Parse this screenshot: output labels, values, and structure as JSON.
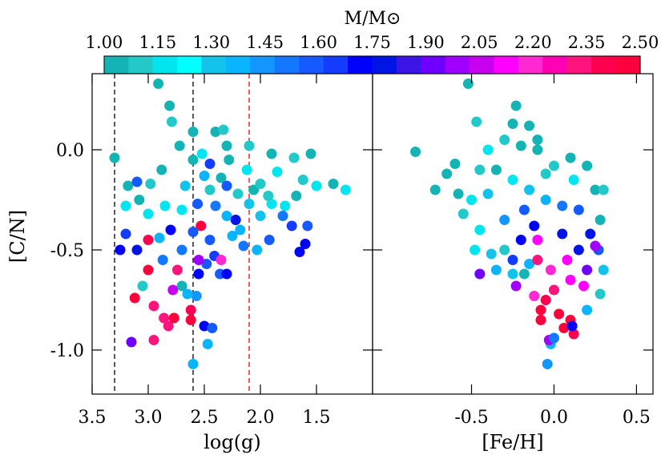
{
  "colorbar": {
    "title": "M/M⊙",
    "tick_labels": [
      "1.00",
      "1.15",
      "1.30",
      "1.45",
      "1.60",
      "1.75",
      "1.90",
      "2.05",
      "2.20",
      "2.35",
      "2.50"
    ],
    "range": [
      1.0,
      2.5
    ],
    "segment_colors": [
      "#14b4b4",
      "#23c8c8",
      "#00e6f0",
      "#00ffff",
      "#14c3eb",
      "#0ab4ff",
      "#1496ff",
      "#1478ff",
      "#145aff",
      "#143cff",
      "#0000ff",
      "#0014e6",
      "#3c14e6",
      "#6e00ff",
      "#a000ff",
      "#c800f0",
      "#ff00ff",
      "#ff28d2",
      "#ff00b4",
      "#ff147d",
      "#ff0050",
      "#ff003c"
    ]
  },
  "chart_data": [
    {
      "type": "scatter",
      "panel": "left",
      "xlabel": "log(g)",
      "ylabel": "[C/N]",
      "xlim": [
        3.5,
        1.0
      ],
      "ylim": [
        -1.22,
        0.38
      ],
      "x_ticks": [
        3.5,
        3.0,
        2.5,
        2.0,
        1.5
      ],
      "x_tick_labels": [
        "3.5",
        "3.0",
        "2.5",
        "2.0",
        "1.5"
      ],
      "y_ticks": [
        0.0,
        -0.5,
        -1.0
      ],
      "y_tick_labels": [
        "0.0",
        "-0.5",
        "-1.0"
      ],
      "vlines": [
        {
          "x": 3.3,
          "color": "#000000",
          "style": "dashed"
        },
        {
          "x": 2.6,
          "color": "#000000",
          "style": "dashed"
        },
        {
          "x": 2.1,
          "color": "#ff0000",
          "style": "dashed"
        }
      ],
      "points": [
        [
          2.91,
          0.33,
          1.0
        ],
        [
          3.3,
          -0.04,
          1.0
        ],
        [
          2.81,
          0.22,
          1.0
        ],
        [
          2.79,
          0.14,
          1.1
        ],
        [
          2.6,
          0.09,
          1.0
        ],
        [
          2.4,
          0.09,
          1.05
        ],
        [
          2.33,
          0.1,
          1.1
        ],
        [
          2.1,
          0.02,
          1.1
        ],
        [
          1.9,
          -0.02,
          1.05
        ],
        [
          1.7,
          -0.04,
          1.08
        ],
        [
          1.55,
          -0.02,
          1.02
        ],
        [
          1.85,
          -0.11,
          1.15
        ],
        [
          1.62,
          -0.15,
          1.1
        ],
        [
          1.5,
          -0.18,
          1.15
        ],
        [
          1.35,
          -0.17,
          1.0
        ],
        [
          1.24,
          -0.2,
          1.15
        ],
        [
          1.68,
          -0.23,
          1.0
        ],
        [
          1.78,
          -0.28,
          1.15
        ],
        [
          1.9,
          -0.27,
          1.2
        ],
        [
          2.0,
          -0.33,
          1.3
        ],
        [
          1.8,
          -0.33,
          1.5
        ],
        [
          1.72,
          -0.38,
          1.65
        ],
        [
          1.58,
          -0.38,
          1.6
        ],
        [
          1.6,
          -0.47,
          1.7
        ],
        [
          1.65,
          -0.51,
          1.7
        ],
        [
          1.92,
          -0.45,
          1.6
        ],
        [
          2.03,
          -0.5,
          1.4
        ],
        [
          2.18,
          -0.4,
          1.35
        ],
        [
          2.25,
          -0.43,
          1.35
        ],
        [
          2.15,
          -0.48,
          1.5
        ],
        [
          2.41,
          -0.53,
          1.65
        ],
        [
          2.48,
          -0.57,
          1.6
        ],
        [
          2.55,
          -0.62,
          1.7
        ],
        [
          2.57,
          -0.73,
          1.45
        ],
        [
          2.36,
          -0.62,
          1.55
        ],
        [
          2.3,
          -0.62,
          1.7
        ],
        [
          2.53,
          -0.38,
          2.45
        ],
        [
          2.65,
          -0.72,
          1.4
        ],
        [
          2.7,
          -0.68,
          1.0
        ],
        [
          3.0,
          -0.6,
          2.45
        ],
        [
          3.05,
          -0.68,
          1.1
        ],
        [
          3.12,
          -0.74,
          2.5
        ],
        [
          2.95,
          -0.78,
          2.3
        ],
        [
          2.86,
          -0.84,
          2.3
        ],
        [
          2.82,
          -0.88,
          2.35
        ],
        [
          2.77,
          -0.84,
          2.5
        ],
        [
          2.62,
          -0.8,
          2.4
        ],
        [
          2.62,
          -0.85,
          2.45
        ],
        [
          2.95,
          -0.95,
          2.3
        ],
        [
          3.15,
          -0.96,
          1.95
        ],
        [
          2.5,
          -0.88,
          1.7
        ],
        [
          2.47,
          -0.97,
          1.35
        ],
        [
          2.6,
          -1.07,
          1.4
        ],
        [
          2.43,
          -0.89,
          1.6
        ],
        [
          3.25,
          -0.5,
          1.7
        ],
        [
          3.2,
          -0.42,
          1.65
        ],
        [
          3.2,
          -0.28,
          1.15
        ],
        [
          3.18,
          -0.18,
          1.0
        ],
        [
          3.1,
          -0.16,
          1.6
        ],
        [
          3.0,
          -0.32,
          1.2
        ],
        [
          2.85,
          -0.28,
          1.2
        ],
        [
          2.9,
          -0.44,
          1.4
        ],
        [
          2.87,
          -0.55,
          1.5
        ],
        [
          2.7,
          -0.5,
          1.5
        ],
        [
          2.7,
          -0.3,
          1.2
        ],
        [
          2.67,
          -0.18,
          1.3
        ],
        [
          2.56,
          -0.27,
          1.55
        ],
        [
          2.5,
          -0.13,
          1.35
        ],
        [
          2.4,
          -0.28,
          1.5
        ],
        [
          2.45,
          -0.2,
          1.1
        ],
        [
          2.35,
          -0.14,
          1.0
        ],
        [
          2.28,
          -0.05,
          1.05
        ],
        [
          2.2,
          -0.22,
          1.1
        ],
        [
          2.12,
          -0.1,
          1.15
        ],
        [
          2.06,
          -0.2,
          1.0
        ],
        [
          2.0,
          -0.17,
          1.1
        ],
        [
          1.93,
          -0.23,
          1.1
        ],
        [
          2.1,
          -0.27,
          1.3
        ],
        [
          2.3,
          -0.33,
          1.4
        ],
        [
          2.6,
          -0.41,
          1.6
        ],
        [
          2.8,
          -0.4,
          1.7
        ],
        [
          3.1,
          -0.5,
          1.8
        ],
        [
          3.0,
          -0.45,
          2.4
        ],
        [
          2.74,
          -0.6,
          2.3
        ],
        [
          2.78,
          -0.7,
          2.05
        ],
        [
          2.55,
          -0.55,
          2.0
        ],
        [
          2.35,
          -0.55,
          2.2
        ],
        [
          2.45,
          -0.45,
          1.6
        ],
        [
          2.22,
          -0.35,
          1.8
        ],
        [
          2.3,
          -0.18,
          1.6
        ],
        [
          2.52,
          -0.02,
          1.15
        ],
        [
          2.6,
          -0.05,
          1.0
        ],
        [
          2.72,
          0.02,
          1.0
        ],
        [
          2.88,
          -0.1,
          1.05
        ],
        [
          2.98,
          -0.17,
          1.1
        ],
        [
          3.08,
          -0.25,
          1.0
        ],
        [
          2.3,
          0.02,
          1.05
        ],
        [
          2.45,
          -0.07,
          1.65
        ]
      ]
    },
    {
      "type": "scatter",
      "panel": "right",
      "xlabel": "[Fe/H]",
      "ylabel": "",
      "xlim": [
        -1.1,
        0.6
      ],
      "ylim": [
        -1.22,
        0.38
      ],
      "x_ticks": [
        -0.5,
        0.0,
        0.5
      ],
      "x_tick_labels": [
        "-0.5",
        "0.0",
        "0.5"
      ],
      "y_ticks": [
        0.0,
        -0.5,
        -1.0
      ],
      "points": [
        [
          -0.52,
          0.33,
          1.0
        ],
        [
          -0.23,
          0.22,
          1.0
        ],
        [
          -0.47,
          0.14,
          1.1
        ],
        [
          -0.15,
          0.12,
          1.0
        ],
        [
          -0.25,
          0.13,
          1.0
        ],
        [
          -0.1,
          0.05,
          1.05
        ],
        [
          -0.84,
          -0.01,
          1.0
        ],
        [
          -0.6,
          -0.07,
          1.0
        ],
        [
          -0.65,
          -0.12,
          1.05
        ],
        [
          -0.72,
          -0.2,
          1.0
        ],
        [
          -0.58,
          -0.22,
          1.05
        ],
        [
          -0.5,
          -0.25,
          1.15
        ],
        [
          -0.55,
          -0.32,
          1.1
        ],
        [
          -0.45,
          -0.4,
          1.2
        ],
        [
          -0.48,
          -0.5,
          1.15
        ],
        [
          -0.38,
          -0.52,
          1.3
        ],
        [
          -0.3,
          -0.5,
          1.1
        ],
        [
          -0.45,
          -0.62,
          1.9
        ],
        [
          -0.35,
          -0.6,
          1.35
        ],
        [
          -0.25,
          -0.62,
          1.3
        ],
        [
          -0.18,
          -0.62,
          1.0
        ],
        [
          -0.15,
          -0.57,
          1.4
        ],
        [
          -0.23,
          -0.68,
          2.0
        ],
        [
          -0.12,
          -0.73,
          2.2
        ],
        [
          -0.05,
          -0.75,
          2.4
        ],
        [
          -0.08,
          -0.8,
          2.5
        ],
        [
          -0.08,
          -0.85,
          2.5
        ],
        [
          0.03,
          -0.82,
          2.45
        ],
        [
          0.1,
          -0.85,
          2.45
        ],
        [
          0.06,
          -0.89,
          2.45
        ],
        [
          0.12,
          -0.92,
          2.4
        ],
        [
          -0.02,
          -0.97,
          1.35
        ],
        [
          -0.03,
          -0.95,
          2.0
        ],
        [
          0.0,
          -0.94,
          1.5
        ],
        [
          -0.04,
          -1.07,
          1.45
        ],
        [
          0.11,
          -0.88,
          1.7
        ],
        [
          0.2,
          -0.8,
          1.4
        ],
        [
          0.28,
          -0.72,
          1.1
        ],
        [
          0.3,
          -0.6,
          1.3
        ],
        [
          0.27,
          -0.5,
          1.6
        ],
        [
          0.28,
          -0.35,
          1.0
        ],
        [
          0.25,
          -0.2,
          1.0
        ],
        [
          0.3,
          -0.2,
          1.1
        ],
        [
          0.2,
          -0.08,
          1.0
        ],
        [
          0.1,
          -0.04,
          1.05
        ],
        [
          0.0,
          -0.08,
          1.1
        ],
        [
          -0.1,
          0.0,
          1.05
        ],
        [
          -0.2,
          0.02,
          1.0
        ],
        [
          -0.3,
          0.05,
          1.1
        ],
        [
          -0.4,
          0.0,
          1.15
        ],
        [
          -0.35,
          -0.1,
          1.0
        ],
        [
          -0.25,
          -0.15,
          1.2
        ],
        [
          -0.15,
          -0.2,
          1.3
        ],
        [
          -0.05,
          -0.25,
          1.4
        ],
        [
          0.05,
          -0.28,
          1.5
        ],
        [
          0.15,
          -0.3,
          1.6
        ],
        [
          0.22,
          -0.42,
          1.75
        ],
        [
          0.15,
          -0.5,
          1.8
        ],
        [
          0.08,
          -0.55,
          2.1
        ],
        [
          -0.02,
          -0.6,
          2.2
        ],
        [
          -0.1,
          -0.55,
          2.3
        ],
        [
          -0.2,
          -0.45,
          1.7
        ],
        [
          -0.3,
          -0.35,
          1.45
        ],
        [
          -0.4,
          -0.22,
          1.3
        ],
        [
          -0.45,
          -0.1,
          1.1
        ],
        [
          0.2,
          -0.6,
          1.95
        ],
        [
          0.1,
          -0.65,
          2.1
        ],
        [
          0.0,
          -0.7,
          2.3
        ],
        [
          -0.12,
          -0.38,
          1.7
        ],
        [
          0.05,
          -0.42,
          1.8
        ],
        [
          -0.1,
          -0.45,
          2.15
        ],
        [
          0.12,
          -0.15,
          1.2
        ],
        [
          -0.18,
          -0.3,
          1.55
        ],
        [
          -0.05,
          -0.12,
          1.1
        ],
        [
          0.25,
          -0.48,
          2.0
        ],
        [
          0.18,
          -0.68,
          2.15
        ],
        [
          -0.25,
          -0.55,
          1.65
        ]
      ]
    }
  ]
}
